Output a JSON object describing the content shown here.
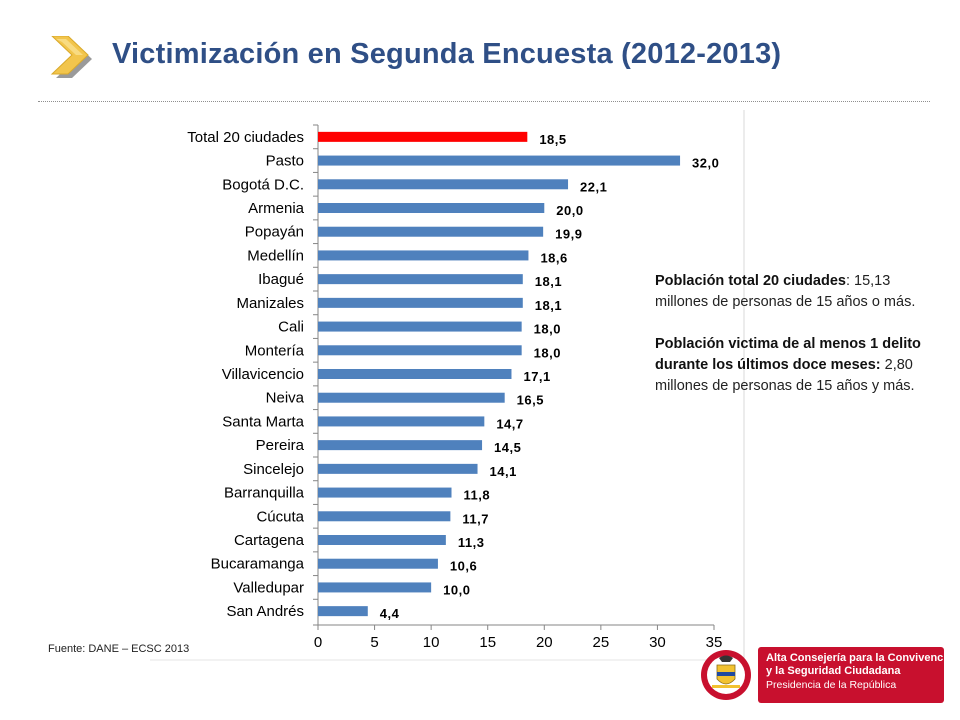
{
  "header": {
    "title": "Victimización en Segunda Encuesta (2012-2013)"
  },
  "colors": {
    "title": "#2f4f86",
    "bar": "#4f81bd",
    "highlight_bar": "#ff0000",
    "chevron": "#f2c54c",
    "logo_red": "#c8102e"
  },
  "chart_data": {
    "type": "bar",
    "orientation": "horizontal",
    "categories": [
      "Total 20 ciudades",
      "Pasto",
      "Bogotá D.C.",
      "Armenia",
      "Popayán",
      "Medellín",
      "Ibagué",
      "Manizales",
      "Cali",
      "Montería",
      "Villavicencio",
      "Neiva",
      "Santa Marta",
      "Pereira",
      "Sincelejo",
      "Barranquilla",
      "Cúcuta",
      "Cartagena",
      "Bucaramanga",
      "Valledupar",
      "San Andrés"
    ],
    "values": [
      18.5,
      32.0,
      22.1,
      20.0,
      19.9,
      18.6,
      18.1,
      18.1,
      18.0,
      18.0,
      17.1,
      16.5,
      14.7,
      14.5,
      14.1,
      11.8,
      11.7,
      11.3,
      10.6,
      10.0,
      4.4
    ],
    "value_labels": [
      "18,5",
      "32,0",
      "22,1",
      "20,0",
      "19,9",
      "18,6",
      "18,1",
      "18,1",
      "18,0",
      "18,0",
      "17,1",
      "16,5",
      "14,7",
      "14,5",
      "14,1",
      "11,8",
      "11,7",
      "11,3",
      "10,6",
      "10,0",
      "4,4"
    ],
    "highlight_category": "Total 20 ciudades",
    "xlim": [
      0,
      35
    ],
    "xticks": [
      0,
      5,
      10,
      15,
      20,
      25,
      30,
      35
    ],
    "grid": false,
    "legend": "none"
  },
  "info": {
    "p1_bold": "Población total 20 ciudades",
    "p1_text": ": 15,13 millones de personas de 15 años o más.",
    "p2_bold": "Población victima de al menos 1 delito durante los últimos doce meses:",
    "p2_text": " 2,80 millones de personas de 15 años y más."
  },
  "source": "Fuente: DANE – ECSC 2013",
  "logo": {
    "line1": "Alta Consejería para la Convivencia",
    "line2": "y la Seguridad Ciudadana",
    "line3": "Presidencia de la República"
  },
  "icons": {
    "chevron": "chevron-right-icon",
    "seal": "colombia-coat-of-arms-icon"
  }
}
